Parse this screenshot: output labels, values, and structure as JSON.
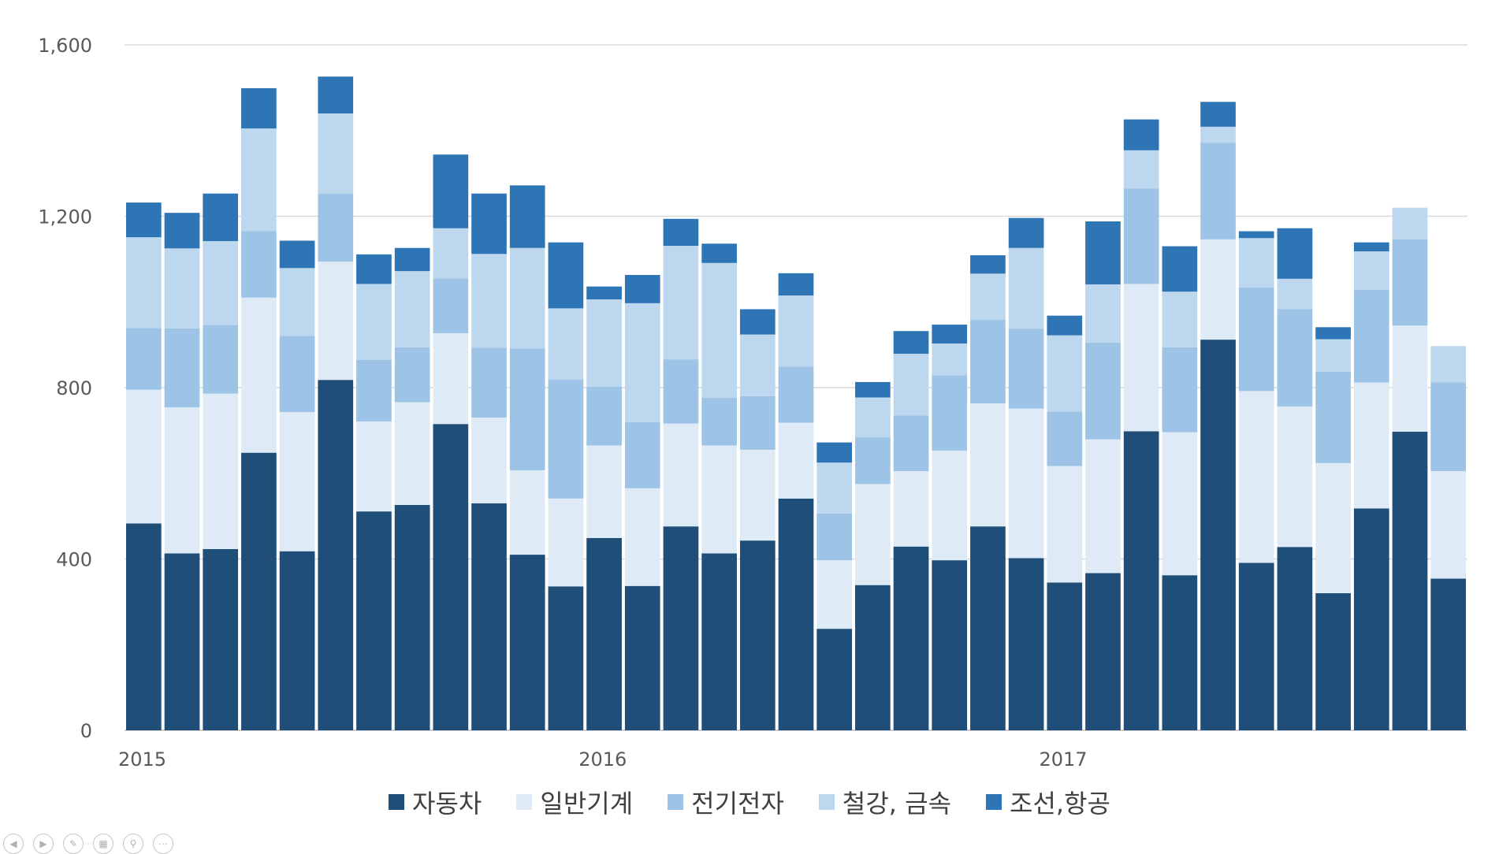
{
  "chart_data": {
    "type": "bar",
    "stacked": true,
    "x_tick_labels": [
      "2015",
      "2016",
      "2017"
    ],
    "x_tick_indices": [
      0,
      12,
      24
    ],
    "y_ticks": [
      "0",
      "400",
      "800",
      "1,200",
      "1,600"
    ],
    "ylim": [
      0,
      1600
    ],
    "grid": true,
    "legend_position": "bottom",
    "series": [
      {
        "name": "자동차",
        "color": "#1f4e79",
        "values": [
          483,
          413,
          423,
          648,
          418,
          818,
          511,
          526,
          715,
          530,
          410,
          336,
          449,
          337,
          476,
          413,
          443,
          541,
          237,
          339,
          429,
          397,
          476,
          402,
          345,
          367,
          698,
          362,
          912,
          391,
          428,
          320,
          518,
          697,
          354
        ]
      },
      {
        "name": "일반기계",
        "color": "#deebf7",
        "values": [
          312,
          341,
          363,
          362,
          325,
          276,
          210,
          240,
          212,
          200,
          197,
          205,
          216,
          228,
          240,
          252,
          212,
          177,
          160,
          236,
          176,
          256,
          287,
          349,
          272,
          312,
          344,
          334,
          234,
          401,
          328,
          304,
          294,
          248,
          251
        ]
      },
      {
        "name": "전기전자",
        "color": "#9dc3e6",
        "values": [
          144,
          184,
          160,
          155,
          178,
          159,
          144,
          128,
          128,
          163,
          284,
          278,
          137,
          154,
          150,
          111,
          125,
          131,
          109,
          109,
          130,
          176,
          195,
          186,
          127,
          226,
          223,
          198,
          225,
          242,
          227,
          213,
          216,
          201,
          207
        ]
      },
      {
        "name": "철강, 금속",
        "color": "#bdd7ee",
        "values": [
          212,
          187,
          196,
          240,
          158,
          187,
          177,
          178,
          117,
          219,
          235,
          166,
          204,
          278,
          265,
          315,
          144,
          166,
          119,
          93,
          144,
          74,
          108,
          189,
          178,
          136,
          89,
          130,
          38,
          115,
          71,
          76,
          90,
          74,
          85
        ]
      },
      {
        "name": "조선,항공",
        "color": "#2e75b6",
        "values": [
          81,
          83,
          111,
          94,
          64,
          86,
          69,
          54,
          172,
          141,
          146,
          154,
          30,
          66,
          63,
          45,
          59,
          52,
          47,
          36,
          53,
          44,
          43,
          70,
          46,
          147,
          72,
          106,
          58,
          16,
          118,
          28,
          21,
          0,
          0
        ]
      }
    ]
  }
}
